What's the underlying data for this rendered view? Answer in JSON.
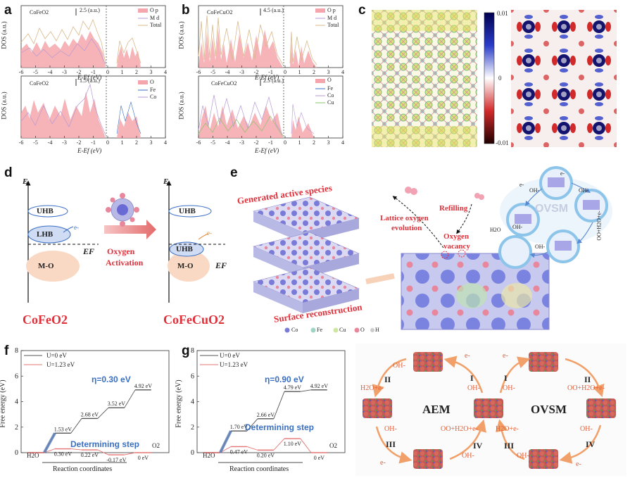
{
  "panels": {
    "a": {
      "label": "a",
      "top": {
        "material": "CoFeO2",
        "scale": "2.5 (a.u.)",
        "legend": [
          "O p",
          "M d",
          "Total"
        ]
      },
      "bottom": {
        "material": "CoFeO2",
        "scale": "1.5 (a.u.)",
        "legend": [
          "O",
          "Fe",
          "Co"
        ]
      },
      "ylabel": "DOS (a.u.)",
      "xlabel": "E-Ef (eV)",
      "xticks": [
        "-6",
        "-5",
        "-4",
        "-3",
        "-2",
        "-1",
        "0",
        "1",
        "2",
        "3",
        "4"
      ]
    },
    "b": {
      "label": "b",
      "top": {
        "material": "CoFeCuO2",
        "scale": "4.5 (a.u.)",
        "legend": [
          "O p",
          "M d",
          "Total"
        ]
      },
      "bottom": {
        "material": "CoFeCuO2",
        "scale": "2.5 (a.u.)",
        "legend": [
          "O",
          "Fe",
          "Co",
          "Cu"
        ]
      },
      "ylabel": "DOS (a.u.)",
      "xlabel": "E-Ef (eV)",
      "xticks": [
        "-6",
        "-5",
        "-4",
        "-3",
        "-2",
        "-1",
        "0",
        "1",
        "2",
        "3",
        "4"
      ]
    },
    "c": {
      "label": "c",
      "colorbar": [
        "0.01",
        "0",
        "-0.01"
      ]
    },
    "d": {
      "label": "d",
      "axis": "E",
      "bands": [
        "UHB",
        "LHB",
        "M-O"
      ],
      "fermi": "EF",
      "electron": "e-",
      "arrow_text": [
        "Oxygen",
        "Activation"
      ],
      "left_material": "CoFeO2",
      "right_material": "CoFeCuO2"
    },
    "e": {
      "label": "e",
      "texts": {
        "active": "Generated active species",
        "surface": "Surface reconstruction",
        "lattice": [
          "Lattice oxygen",
          "evolution"
        ],
        "refilling": "Refilling",
        "vacancy": [
          "Oxygen",
          "vacancy"
        ],
        "ovsm": "OVSM",
        "oh": "OH-",
        "h2o": "H2O",
        "ooh": "OO+H2O+e-",
        "e": "e-"
      },
      "legend": [
        "Co",
        "Fe",
        "Cu",
        "O",
        "H"
      ]
    },
    "f": {
      "label": "f",
      "legend": [
        "U=0 eV",
        "U=1.23 eV"
      ],
      "eta": "η=0.30 eV",
      "step": "Determining step",
      "ylabel": "Free energy (eV)",
      "xlabel": "Reaction coordinates",
      "yticks": [
        "0",
        "2",
        "4",
        "6",
        "8"
      ],
      "start": "H2O",
      "end": "O2"
    },
    "g": {
      "label": "g",
      "legend": [
        "U=0 eV",
        "U=1.23 eV"
      ],
      "eta": "η=0.90 eV",
      "step": "Determining step",
      "ylabel": "Free energy (eV)",
      "xlabel": "Reaction coordinates",
      "yticks": [
        "0",
        "2",
        "4",
        "6",
        "8"
      ],
      "start": "H2O",
      "end": "O2"
    },
    "h": {
      "label": "h",
      "center_left": "AEM",
      "center_right": "OVSM",
      "roman": [
        "I",
        "II",
        "III",
        "IV",
        "I",
        "II",
        "III",
        "IV"
      ],
      "species": [
        "OH-",
        "e-",
        "H2O+e-",
        "OO+H2O+e-"
      ]
    }
  },
  "colors": {
    "red": "#e0303a",
    "blue": "#3a6fc4",
    "pink": "#f4a6ac",
    "darkline": "#555555"
  },
  "chart_data": [
    {
      "type": "line",
      "title": "f",
      "xlabel": "Reaction coordinates",
      "ylabel": "Free energy (eV)",
      "ylim": [
        0,
        8
      ],
      "series": [
        {
          "name": "U=0 eV",
          "values": [
            0,
            1.53,
            2.68,
            3.52,
            4.92
          ],
          "labels": [
            "",
            "1.53 eV",
            "2.68 eV",
            "3.52 eV",
            "4.92 eV"
          ]
        },
        {
          "name": "U=1.23 eV",
          "values": [
            0,
            0.3,
            0.22,
            -0.17,
            0
          ],
          "labels": [
            "",
            "0.30 eV",
            "0.22 eV",
            "-0.17 eV",
            "0 eV"
          ]
        }
      ]
    },
    {
      "type": "line",
      "title": "g",
      "xlabel": "Reaction coordinates",
      "ylabel": "Free energy (eV)",
      "ylim": [
        0,
        8
      ],
      "series": [
        {
          "name": "U=0 eV",
          "values": [
            0,
            1.7,
            2.66,
            4.79,
            4.92
          ],
          "labels": [
            "",
            "1.70 eV",
            "2.66 eV",
            "4.79 eV",
            "4.92 eV"
          ]
        },
        {
          "name": "U=1.23 eV",
          "values": [
            0,
            0.47,
            0.2,
            1.1,
            0
          ],
          "labels": [
            "",
            "0.47 eV",
            "0.20 eV",
            "1.10 eV",
            "0 eV"
          ]
        }
      ]
    }
  ]
}
